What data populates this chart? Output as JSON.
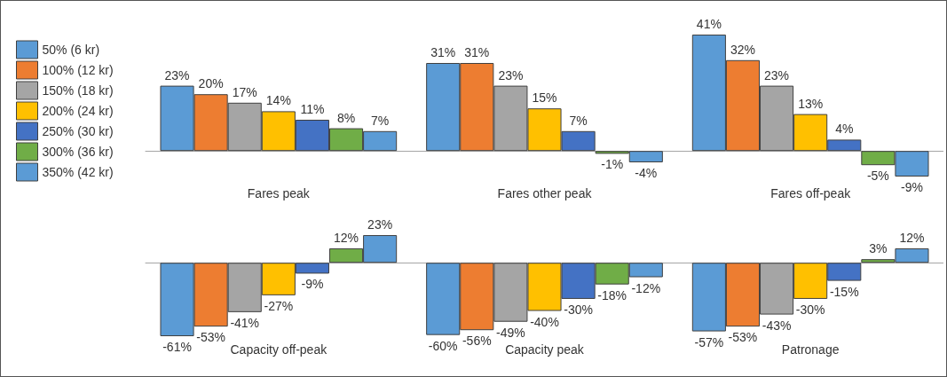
{
  "chart_data": [
    {
      "type": "bar",
      "categories": [
        "Fares peak",
        "Fares other peak",
        "Fares off-peak"
      ],
      "legend": "left",
      "tick_labels": "x",
      "series": [
        {
          "name": "50% (6 kr)",
          "color": "#5b9bd5",
          "values": [
            23,
            31,
            41
          ],
          "value_labels": [
            "23%",
            "31%",
            "41%"
          ]
        },
        {
          "name": "100% (12 kr)",
          "color": "#ed7d31",
          "values": [
            20,
            31,
            32
          ],
          "value_labels": [
            "20%",
            "31%",
            "32%"
          ]
        },
        {
          "name": "150% (18 kr)",
          "color": "#a5a5a5",
          "values": [
            17,
            23,
            23
          ],
          "value_labels": [
            "17%",
            "23%",
            "23%"
          ]
        },
        {
          "name": "200% (24 kr)",
          "color": "#ffc000",
          "values": [
            14,
            15,
            13
          ],
          "value_labels": [
            "14%",
            "15%",
            "13%"
          ]
        },
        {
          "name": "250% (30 kr)",
          "color": "#4472c4",
          "values": [
            11,
            7,
            4
          ],
          "value_labels": [
            "11%",
            "7%",
            "4%"
          ]
        },
        {
          "name": "300% (36 kr)",
          "color": "#70ad47",
          "values": [
            8,
            -1,
            -5
          ],
          "value_labels": [
            "8%",
            "-1%",
            "-5%"
          ]
        },
        {
          "name": "350% (42 kr)",
          "color": "#5b9bd5",
          "values": [
            7,
            -4,
            -9
          ],
          "value_labels": [
            "7%",
            "-4%",
            "-9%"
          ]
        }
      ]
    },
    {
      "type": "bar",
      "categories": [
        "Capacity off-peak",
        "Capacity peak",
        "Patronage"
      ],
      "tick_labels": "x",
      "series": [
        {
          "color": "#5b9bd5",
          "values": [
            -61,
            -60,
            -57
          ],
          "value_labels": [
            "-61%",
            "-60%",
            "-57%"
          ]
        },
        {
          "color": "#ed7d31",
          "values": [
            -53,
            -56,
            -53
          ],
          "value_labels": [
            "-53%",
            "-56%",
            "-53%"
          ]
        },
        {
          "color": "#a5a5a5",
          "values": [
            -41,
            -49,
            -43
          ],
          "value_labels": [
            "-41%",
            "-49%",
            "-43%"
          ]
        },
        {
          "color": "#ffc000",
          "values": [
            -27,
            -40,
            -30
          ],
          "value_labels": [
            "-27%",
            "-40%",
            "-30%"
          ]
        },
        {
          "color": "#4472c4",
          "values": [
            -9,
            -30,
            -15
          ],
          "value_labels": [
            "-9%",
            "-30%",
            "-15%"
          ]
        },
        {
          "color": "#70ad47",
          "values": [
            12,
            -18,
            3
          ],
          "value_labels": [
            "12%",
            "-18%",
            "3%"
          ]
        },
        {
          "color": "#5b9bd5",
          "values": [
            23,
            -12,
            12
          ],
          "value_labels": [
            "23%",
            "-12%",
            "12%"
          ]
        }
      ]
    }
  ]
}
